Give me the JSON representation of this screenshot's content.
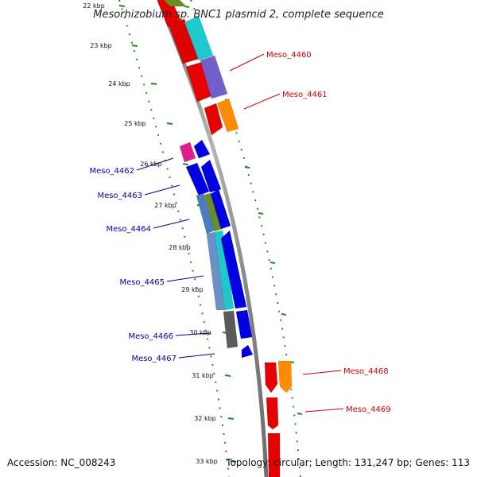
{
  "title": "Mesorhizobium sp. BNC1 plasmid 2, complete sequence",
  "footer": {
    "accession": "Accession: NC_008243",
    "topology": "Topology: circular; Length: 131,247 bp; Genes: 113"
  },
  "colors": {
    "forward_label": "#cc0000",
    "reverse_label": "#00009c",
    "backbone": "#8c8c8c",
    "ticks": "#228b22"
  },
  "kbp_ticks": [
    "22 kbp",
    "23 kbp",
    "24 kbp",
    "25 kbp",
    "26 kbp",
    "27 kbp",
    "28 kbp",
    "29 kbp",
    "30 kbp",
    "31 kbp",
    "32 kbp",
    "33 kbp"
  ],
  "gene_labels": [
    {
      "name": "Meso_4460",
      "strand": "forward"
    },
    {
      "name": "Meso_4461",
      "strand": "forward"
    },
    {
      "name": "Meso_4462",
      "strand": "reverse"
    },
    {
      "name": "Meso_4463",
      "strand": "reverse"
    },
    {
      "name": "Meso_4464",
      "strand": "reverse"
    },
    {
      "name": "Meso_4465",
      "strand": "reverse"
    },
    {
      "name": "Meso_4466",
      "strand": "reverse"
    },
    {
      "name": "Meso_4467",
      "strand": "reverse"
    },
    {
      "name": "Meso_4468",
      "strand": "forward"
    },
    {
      "name": "Meso_4469",
      "strand": "forward"
    }
  ]
}
